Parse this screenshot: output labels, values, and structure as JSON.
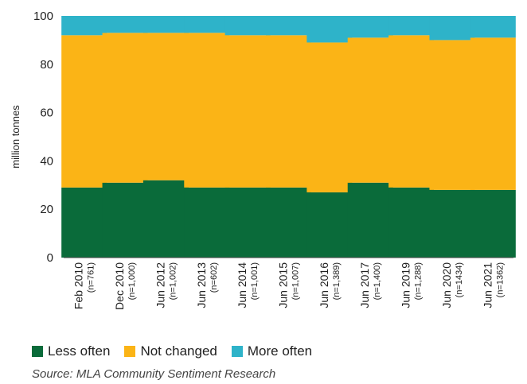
{
  "chart_data": {
    "type": "bar",
    "stacked": true,
    "title": "",
    "xlabel": "",
    "ylabel": "million tonnes",
    "ylim": [
      0,
      100
    ],
    "yticks": [
      0,
      20,
      40,
      60,
      80,
      100
    ],
    "grid": false,
    "legend_placement": "bottom",
    "categories": [
      {
        "label": "Feb 2010",
        "sub": "(n=761)"
      },
      {
        "label": "Dec 2010",
        "sub": "(n=1,000)"
      },
      {
        "label": "Jun 2012",
        "sub": "(n=1,002)"
      },
      {
        "label": "Jun 2013",
        "sub": "(n=602)"
      },
      {
        "label": "Jun 2014",
        "sub": "(n=1,001)"
      },
      {
        "label": "Jun 2015",
        "sub": "(n=1,007)"
      },
      {
        "label": "Jun 2016",
        "sub": "(n=1,389)"
      },
      {
        "label": "Jun 2017",
        "sub": "(n=1,400)"
      },
      {
        "label": "Jun 2019",
        "sub": "(n=1,288)"
      },
      {
        "label": "Jun 2020",
        "sub": "(n=1434)"
      },
      {
        "label": "Jun 2021",
        "sub": "(n=1362)"
      }
    ],
    "series": [
      {
        "name": "Less often",
        "color": "#0a6b3a",
        "values": [
          29,
          31,
          32,
          29,
          29,
          29,
          27,
          31,
          29,
          28,
          28
        ]
      },
      {
        "name": "Not changed",
        "color": "#fbb416",
        "values": [
          63,
          62,
          61,
          64,
          63,
          63,
          62,
          60,
          63,
          62,
          63
        ]
      },
      {
        "name": "More often",
        "color": "#2eb3c9",
        "values": [
          8,
          7,
          7,
          7,
          8,
          8,
          11,
          9,
          8,
          10,
          9
        ]
      }
    ]
  },
  "source": "Source: MLA Community Sentiment Research"
}
